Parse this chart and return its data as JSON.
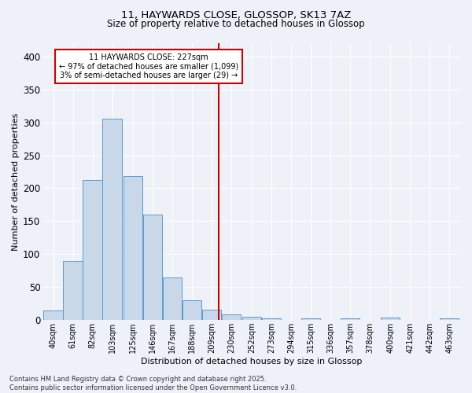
{
  "title": "11, HAYWARDS CLOSE, GLOSSOP, SK13 7AZ",
  "subtitle": "Size of property relative to detached houses in Glossop",
  "xlabel": "Distribution of detached houses by size in Glossop",
  "ylabel": "Number of detached properties",
  "footer_line1": "Contains HM Land Registry data © Crown copyright and database right 2025.",
  "footer_line2": "Contains public sector information licensed under the Open Government Licence v3.0.",
  "bin_labels": [
    "40sqm",
    "61sqm",
    "82sqm",
    "103sqm",
    "125sqm",
    "146sqm",
    "167sqm",
    "188sqm",
    "209sqm",
    "230sqm",
    "252sqm",
    "273sqm",
    "294sqm",
    "315sqm",
    "336sqm",
    "357sqm",
    "378sqm",
    "400sqm",
    "421sqm",
    "442sqm",
    "463sqm"
  ],
  "bar_heights": [
    15,
    90,
    212,
    305,
    218,
    160,
    65,
    30,
    16,
    9,
    5,
    2,
    0,
    3,
    0,
    3,
    0,
    4,
    0,
    0,
    3
  ],
  "bar_color": "#c8d8e8",
  "bar_edge_color": "#5b9bd5",
  "vline_x": 227,
  "vline_color": "#cc0000",
  "annotation_text": "11 HAYWARDS CLOSE: 227sqm\n← 97% of detached houses are smaller (1,099)\n3% of semi-detached houses are larger (29) →",
  "annotation_box_color": "#cc0000",
  "ylim": [
    0,
    420
  ],
  "yticks": [
    0,
    50,
    100,
    150,
    200,
    250,
    300,
    350,
    400
  ],
  "bg_color": "#eef2f8",
  "plot_bg_color": "#eef2f8",
  "grid_color": "#ffffff",
  "title_fontsize": 9.5,
  "subtitle_fontsize": 8.5,
  "bin_width": 21
}
